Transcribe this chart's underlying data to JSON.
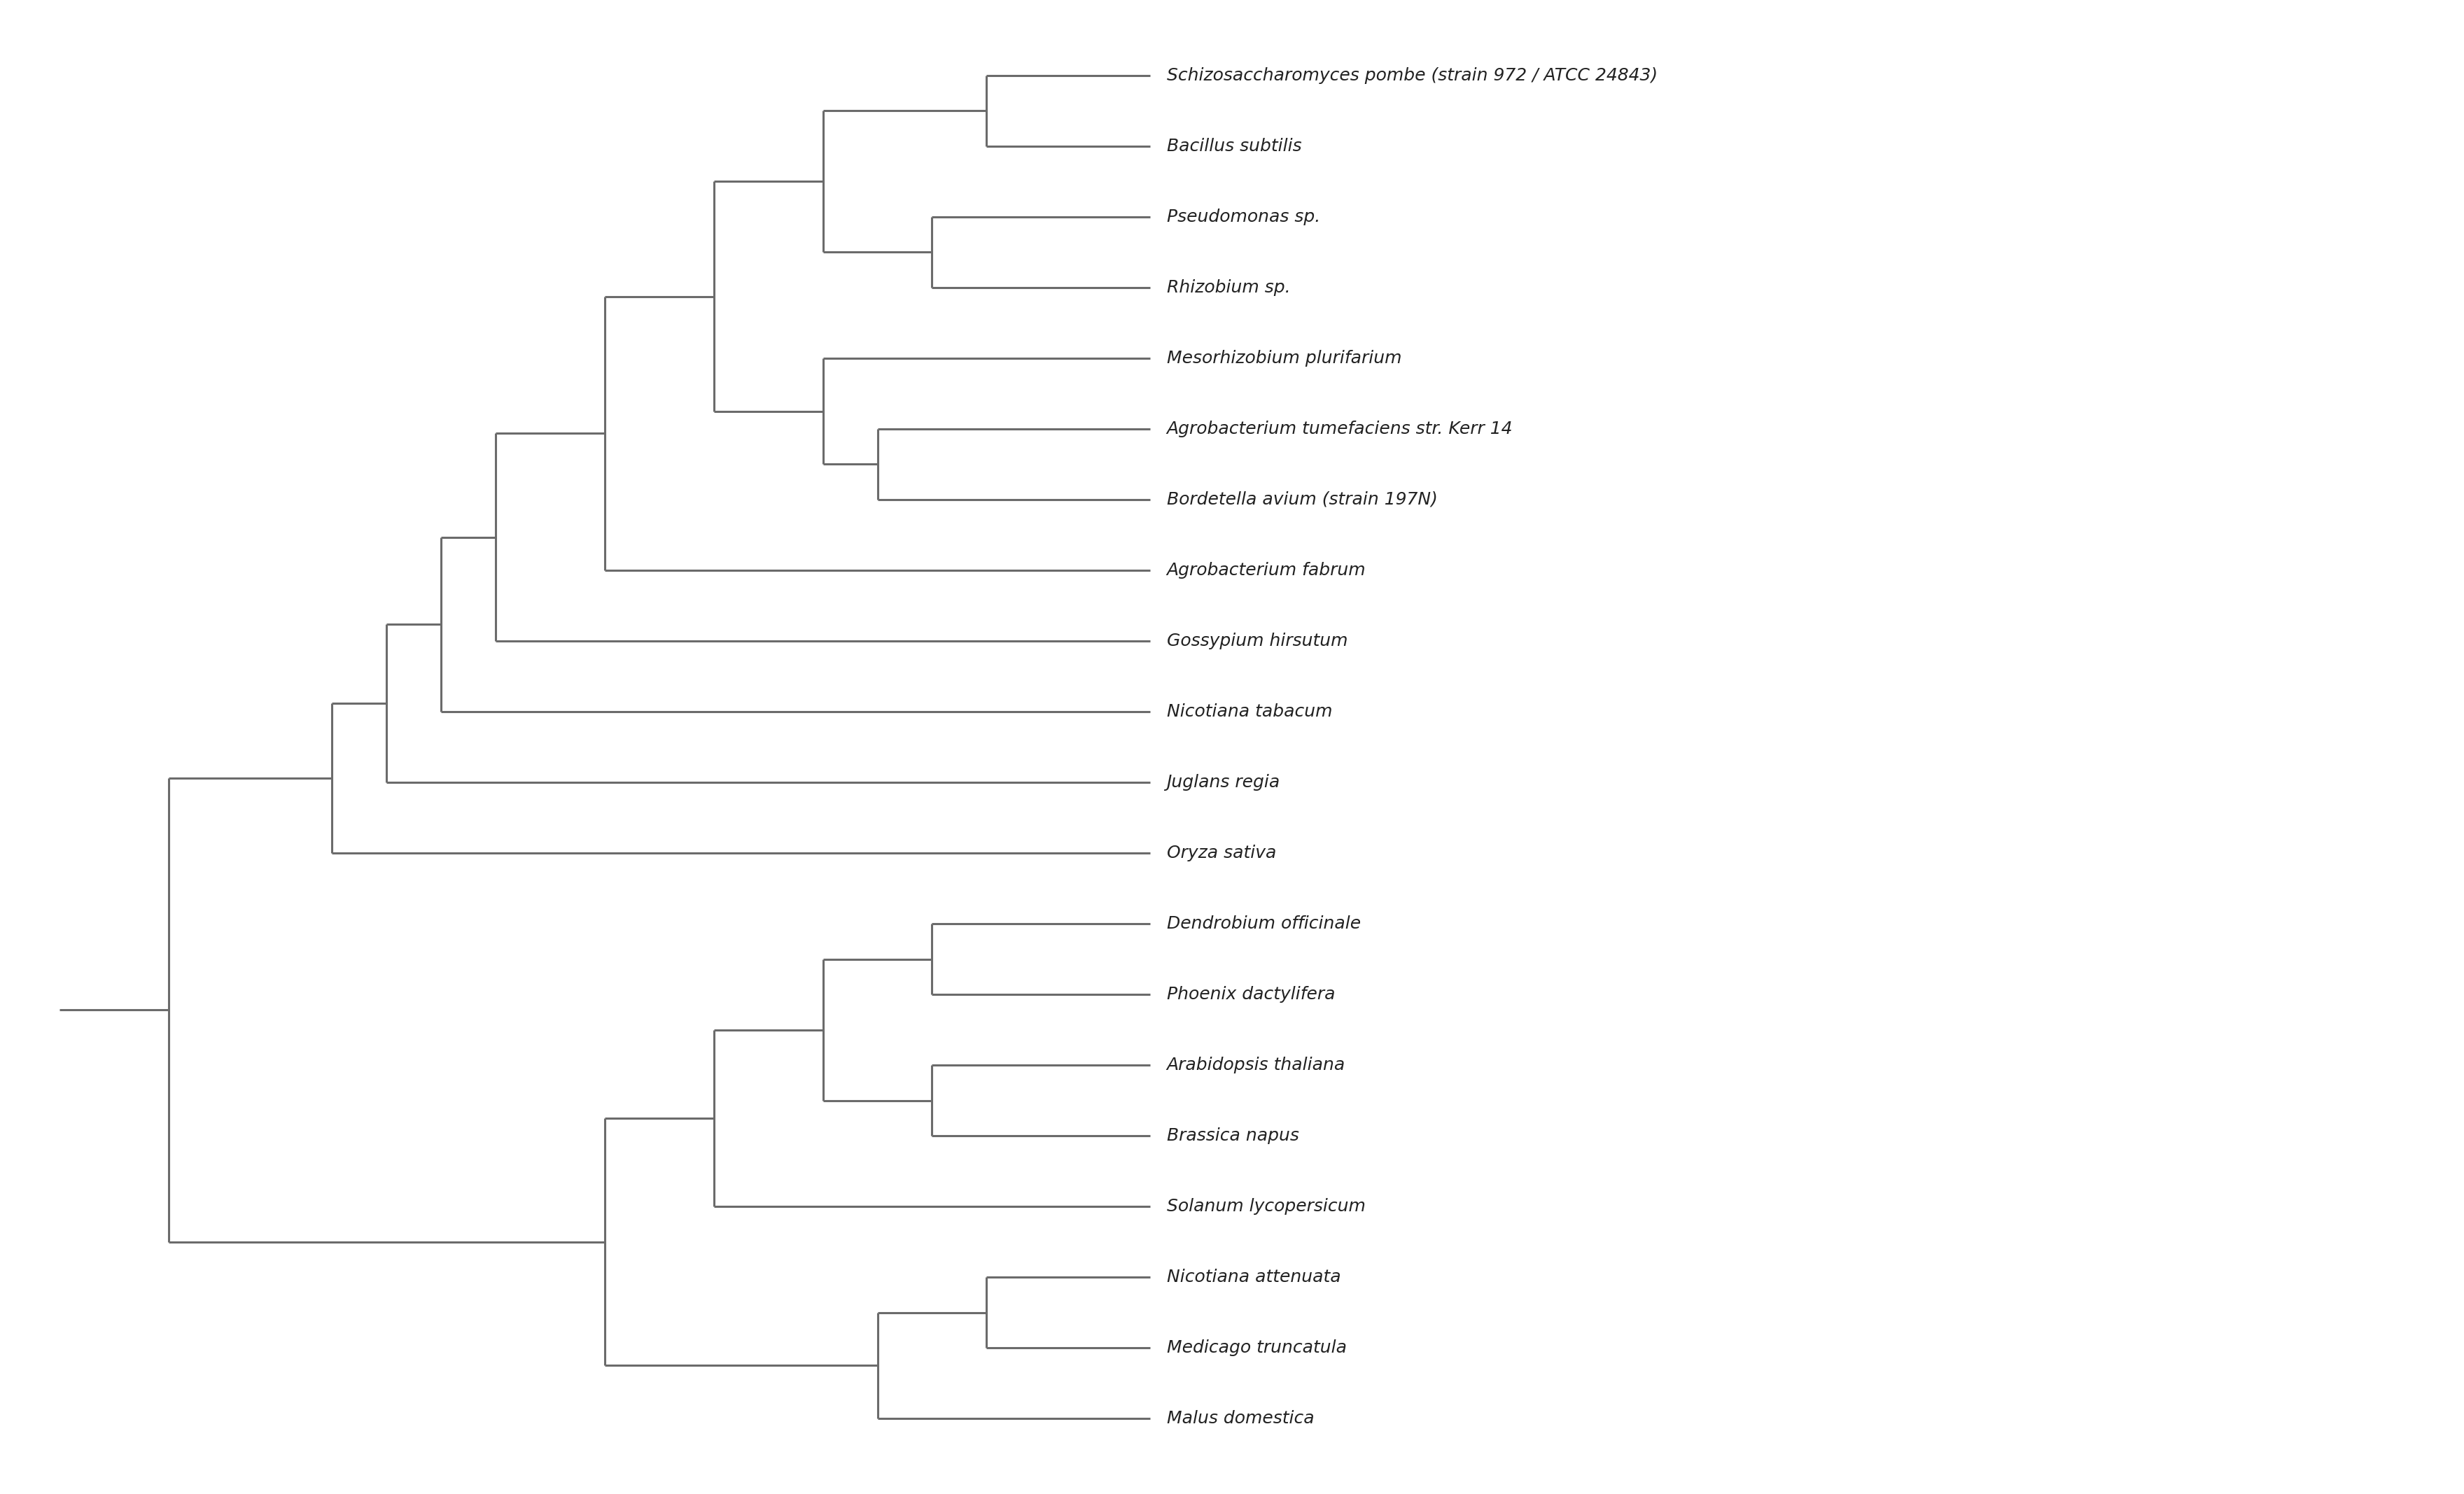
{
  "taxa": [
    "Schizosaccharomyces pombe (strain 972 / ATCC 24843)",
    "Bacillus subtilis",
    "Pseudomonas sp.",
    "Rhizobium sp.",
    "Mesorhizobium plurifarium",
    "Agrobacterium tumefaciens str. Kerr 14",
    "Bordetella avium (strain 197N)",
    "Agrobacterium fabrum",
    "Gossypium hirsutum",
    "Nicotiana tabacum",
    "Juglans regia",
    "Oryza sativa",
    "Dendrobium officinale",
    "Phoenix dactylifera",
    "Arabidopsis thaliana",
    "Brassica napus",
    "Solanum lycopersicum",
    "Nicotiana attenuata",
    "Medicago truncatula",
    "Malus domestica"
  ],
  "line_color": "#6b6b6b",
  "line_width": 2.2,
  "font_size": 18,
  "text_color": "#222222",
  "bg_color": "#ffffff"
}
